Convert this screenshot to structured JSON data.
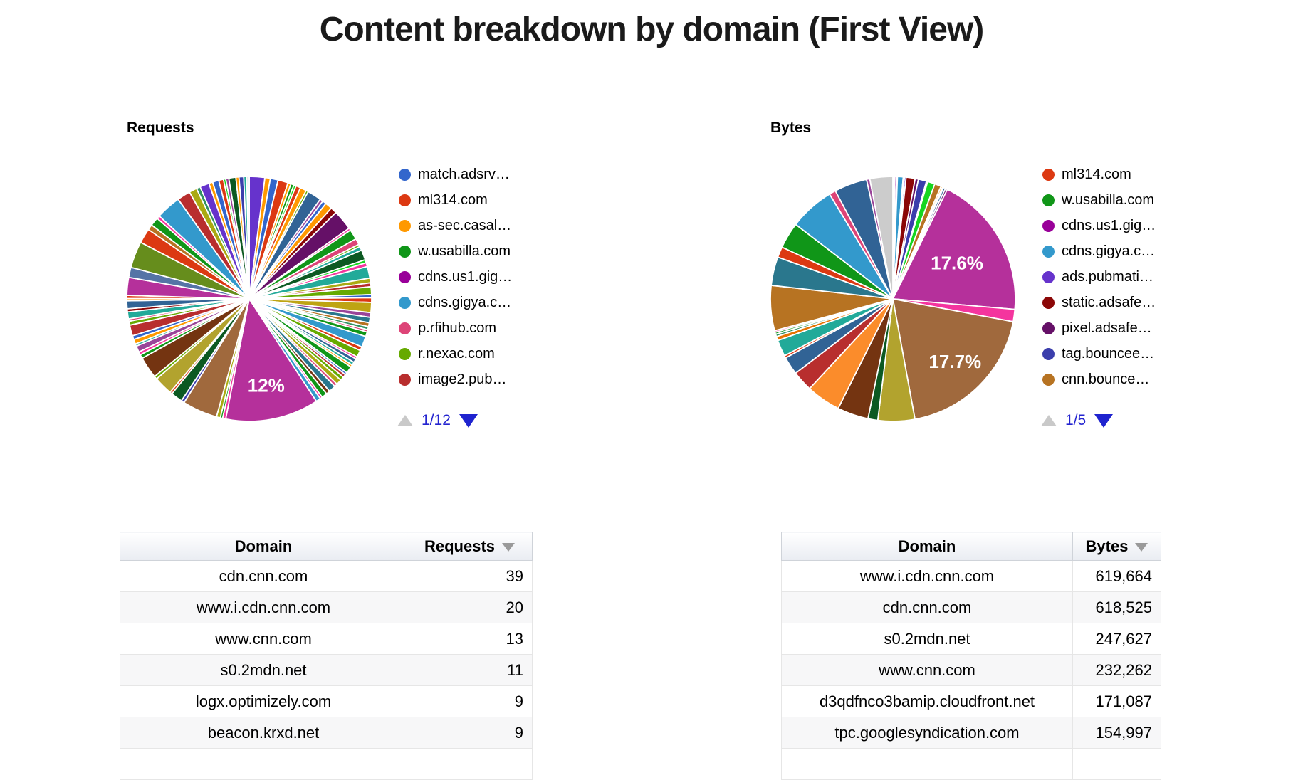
{
  "page": {
    "title": "Content breakdown by domain (First View)"
  },
  "chart_data": [
    {
      "type": "pie",
      "title": "Requests",
      "pager": "1/12",
      "legend_position": "right",
      "legend": [
        {
          "label": "match.adsrv…",
          "color": "#3366CC"
        },
        {
          "label": "ml314.com",
          "color": "#DC3912"
        },
        {
          "label": "as-sec.casal…",
          "color": "#FF9900"
        },
        {
          "label": "w.usabilla.com",
          "color": "#109618"
        },
        {
          "label": "cdns.us1.gig…",
          "color": "#990099"
        },
        {
          "label": "cdns.gigya.c…",
          "color": "#3399CC"
        },
        {
          "label": "p.rfihub.com",
          "color": "#DD4477"
        },
        {
          "label": "r.nexac.com",
          "color": "#66AA00"
        },
        {
          "label": "image2.pub…",
          "color": "#B82E2E"
        }
      ],
      "labeled_values": [
        {
          "label": "12%",
          "value": 12
        }
      ],
      "slices": [
        {
          "v": 2.0,
          "c": "#6633CC"
        },
        {
          "v": 0.7,
          "c": "#FF9900"
        },
        {
          "v": 1.0,
          "c": "#3366CC"
        },
        {
          "v": 1.3,
          "c": "#DC3912"
        },
        {
          "v": 0.4,
          "c": "#FF9900"
        },
        {
          "v": 0.4,
          "c": "#109618"
        },
        {
          "v": 0.3,
          "c": "#16D620"
        },
        {
          "v": 0.6,
          "c": "#DC3912"
        },
        {
          "v": 0.8,
          "c": "#FF9900"
        },
        {
          "v": 0.3,
          "c": "#66AA00"
        },
        {
          "v": 1.8,
          "c": "#316395"
        },
        {
          "v": 0.4,
          "c": "#994499"
        },
        {
          "v": 0.5,
          "c": "#3366CC"
        },
        {
          "v": 0.9,
          "c": "#FF9900"
        },
        {
          "v": 0.8,
          "c": "#8B0707"
        },
        {
          "v": 2.6,
          "c": "#651067"
        },
        {
          "v": 0.3,
          "c": "#F4359E"
        },
        {
          "v": 1.3,
          "c": "#109618"
        },
        {
          "v": 0.8,
          "c": "#DD4477"
        },
        {
          "v": 0.3,
          "c": "#66AA00"
        },
        {
          "v": 0.5,
          "c": "#22AA99"
        },
        {
          "v": 1.3,
          "c": "#0C5922"
        },
        {
          "v": 0.4,
          "c": "#16D620"
        },
        {
          "v": 0.5,
          "c": "#F4359E"
        },
        {
          "v": 1.5,
          "c": "#22AA99"
        },
        {
          "v": 0.6,
          "c": "#AAAA11"
        },
        {
          "v": 0.5,
          "c": "#B82E2E"
        },
        {
          "v": 1.0,
          "c": "#66AA00"
        },
        {
          "v": 0.4,
          "c": "#3366CC"
        },
        {
          "v": 0.6,
          "c": "#DC3912"
        },
        {
          "v": 1.3,
          "c": "#BEA413"
        },
        {
          "v": 0.6,
          "c": "#994499"
        },
        {
          "v": 0.7,
          "c": "#2A778D"
        },
        {
          "v": 0.5,
          "c": "#B77322"
        },
        {
          "v": 0.4,
          "c": "#329262"
        },
        {
          "v": 0.3,
          "c": "#DD4477"
        },
        {
          "v": 0.6,
          "c": "#109618"
        },
        {
          "v": 1.4,
          "c": "#3399CC"
        },
        {
          "v": 0.5,
          "c": "#DC3912"
        },
        {
          "v": 0.9,
          "c": "#66AA00"
        },
        {
          "v": 0.3,
          "c": "#F4359E"
        },
        {
          "v": 0.5,
          "c": "#316395"
        },
        {
          "v": 0.4,
          "c": "#22AA99"
        },
        {
          "v": 0.3,
          "c": "#FF9900"
        },
        {
          "v": 0.9,
          "c": "#109618"
        },
        {
          "v": 0.3,
          "c": "#3366CC"
        },
        {
          "v": 0.4,
          "c": "#B82E2E"
        },
        {
          "v": 0.5,
          "c": "#66AA00"
        },
        {
          "v": 0.7,
          "c": "#AAAA11"
        },
        {
          "v": 0.4,
          "c": "#DD4477"
        },
        {
          "v": 0.9,
          "c": "#2A778D"
        },
        {
          "v": 0.5,
          "c": "#743411"
        },
        {
          "v": 0.7,
          "c": "#109618"
        },
        {
          "v": 0.3,
          "c": "#F4359E"
        },
        {
          "v": 0.6,
          "c": "#3399CC"
        },
        {
          "v": 12.0,
          "c": "#B5309B",
          "t": "12%",
          "f": 0.72
        },
        {
          "v": 0.4,
          "c": "#F4359E"
        },
        {
          "v": 0.3,
          "c": "#109618"
        },
        {
          "v": 0.5,
          "c": "#AAAA11"
        },
        {
          "v": 4.5,
          "c": "#A0693D"
        },
        {
          "v": 0.4,
          "c": "#3B3EAC"
        },
        {
          "v": 1.5,
          "c": "#0C5922"
        },
        {
          "v": 0.3,
          "c": "#DC3912"
        },
        {
          "v": 2.4,
          "c": "#B2A32E"
        },
        {
          "v": 0.4,
          "c": "#66AA00"
        },
        {
          "v": 2.8,
          "c": "#743411"
        },
        {
          "v": 0.5,
          "c": "#109618"
        },
        {
          "v": 0.4,
          "c": "#F4359E"
        },
        {
          "v": 0.8,
          "c": "#994499"
        },
        {
          "v": 0.3,
          "c": "#22AA99"
        },
        {
          "v": 0.6,
          "c": "#FF9900"
        },
        {
          "v": 0.5,
          "c": "#3366CC"
        },
        {
          "v": 1.4,
          "c": "#B82E2E"
        },
        {
          "v": 0.5,
          "c": "#66AA00"
        },
        {
          "v": 0.3,
          "c": "#DD4477"
        },
        {
          "v": 0.9,
          "c": "#22AA99"
        },
        {
          "v": 0.4,
          "c": "#8B0707"
        },
        {
          "v": 1.0,
          "c": "#316395"
        },
        {
          "v": 0.3,
          "c": "#FF9900"
        },
        {
          "v": 0.4,
          "c": "#DC3912"
        },
        {
          "v": 2.3,
          "c": "#B5309B"
        },
        {
          "v": 1.3,
          "c": "#5574A6"
        },
        {
          "v": 3.4,
          "c": "#668D1C"
        },
        {
          "v": 1.9,
          "c": "#DC3912"
        },
        {
          "v": 0.7,
          "c": "#B77322"
        },
        {
          "v": 1.1,
          "c": "#109618"
        },
        {
          "v": 0.4,
          "c": "#F4359E"
        },
        {
          "v": 3.2,
          "c": "#3399CC"
        },
        {
          "v": 1.7,
          "c": "#B82E2E"
        },
        {
          "v": 1.0,
          "c": "#AAAA11"
        },
        {
          "v": 0.5,
          "c": "#329262"
        },
        {
          "v": 1.2,
          "c": "#6633CC"
        },
        {
          "v": 0.5,
          "c": "#FF9900"
        },
        {
          "v": 0.8,
          "c": "#3366CC"
        },
        {
          "v": 0.6,
          "c": "#DC3912"
        },
        {
          "v": 0.3,
          "c": "#16D620"
        },
        {
          "v": 0.4,
          "c": "#994499"
        },
        {
          "v": 0.9,
          "c": "#0C5922"
        },
        {
          "v": 0.4,
          "c": "#FF9900"
        },
        {
          "v": 0.6,
          "c": "#3B3EAC"
        },
        {
          "v": 0.4,
          "c": "#22AA99"
        },
        {
          "v": 0.3,
          "c": "#CCCCCC"
        }
      ]
    },
    {
      "type": "pie",
      "title": "Bytes",
      "pager": "1/5",
      "legend_position": "right",
      "legend": [
        {
          "label": "ml314.com",
          "color": "#DC3912"
        },
        {
          "label": "w.usabilla.com",
          "color": "#109618"
        },
        {
          "label": "cdns.us1.gig…",
          "color": "#990099"
        },
        {
          "label": "cdns.gigya.c…",
          "color": "#3399CC"
        },
        {
          "label": "ads.pubmati…",
          "color": "#6633CC"
        },
        {
          "label": "static.adsafe…",
          "color": "#8B0707"
        },
        {
          "label": "pixel.adsafe…",
          "color": "#651067"
        },
        {
          "label": "tag.bouncee…",
          "color": "#3B3EAC"
        },
        {
          "label": "cnn.bounce…",
          "color": "#B77322"
        }
      ],
      "labeled_values": [
        {
          "label": "17.6%",
          "value": 17.6
        },
        {
          "label": "17.7%",
          "value": 17.7
        }
      ],
      "slices": [
        {
          "v": 0.15,
          "c": "#DC3912"
        },
        {
          "v": 0.1,
          "c": "#16D620"
        },
        {
          "v": 0.2,
          "c": "#990099"
        },
        {
          "v": 0.1,
          "c": "#66AA00"
        },
        {
          "v": 0.7,
          "c": "#3399CC"
        },
        {
          "v": 0.15,
          "c": "#3366CC"
        },
        {
          "v": 0.2,
          "c": "#6633CC"
        },
        {
          "v": 1.1,
          "c": "#8B0707"
        },
        {
          "v": 0.4,
          "c": "#651067"
        },
        {
          "v": 1.0,
          "c": "#3B3EAC"
        },
        {
          "v": 0.15,
          "c": "#3366CC"
        },
        {
          "v": 0.9,
          "c": "#16D620"
        },
        {
          "v": 0.8,
          "c": "#B77322"
        },
        {
          "v": 0.2,
          "c": "#FF9900"
        },
        {
          "v": 0.15,
          "c": "#0099C6"
        },
        {
          "v": 0.25,
          "c": "#316395"
        },
        {
          "v": 0.25,
          "c": "#651067"
        },
        {
          "v": 17.6,
          "c": "#B5309B",
          "t": "17.6%",
          "f": 0.6
        },
        {
          "v": 1.5,
          "c": "#F4359E"
        },
        {
          "v": 17.7,
          "c": "#A0693D",
          "t": "17.7%",
          "f": 0.72
        },
        {
          "v": 4.5,
          "c": "#B2A32E"
        },
        {
          "v": 1.2,
          "c": "#0C5922"
        },
        {
          "v": 3.8,
          "c": "#743411"
        },
        {
          "v": 4.2,
          "c": "#FB8C2B"
        },
        {
          "v": 2.5,
          "c": "#B82E2E"
        },
        {
          "v": 2.2,
          "c": "#316395"
        },
        {
          "v": 0.3,
          "c": "#DC3912"
        },
        {
          "v": 2.0,
          "c": "#22AA99"
        },
        {
          "v": 0.5,
          "c": "#E67300"
        },
        {
          "v": 0.3,
          "c": "#329262"
        },
        {
          "v": 0.25,
          "c": "#109618"
        },
        {
          "v": 0.2,
          "c": "#F4359E"
        },
        {
          "v": 5.5,
          "c": "#B77322"
        },
        {
          "v": 3.5,
          "c": "#2A778D"
        },
        {
          "v": 1.3,
          "c": "#DC3912"
        },
        {
          "v": 3.2,
          "c": "#109618"
        },
        {
          "v": 5.5,
          "c": "#3399CC"
        },
        {
          "v": 0.8,
          "c": "#DD4477"
        },
        {
          "v": 4.0,
          "c": "#316395"
        },
        {
          "v": 0.4,
          "c": "#994499"
        },
        {
          "v": 2.8,
          "c": "#CCCCCC"
        }
      ]
    },
    {
      "type": "table",
      "headers": [
        "Domain",
        "Requests"
      ],
      "sorted_column": "Requests",
      "rows": [
        [
          "cdn.cnn.com",
          "39"
        ],
        [
          "www.i.cdn.cnn.com",
          "20"
        ],
        [
          "www.cnn.com",
          "13"
        ],
        [
          "s0.2mdn.net",
          "11"
        ],
        [
          "logx.optimizely.com",
          "9"
        ],
        [
          "beacon.krxd.net",
          "9"
        ]
      ]
    },
    {
      "type": "table",
      "headers": [
        "Domain",
        "Bytes"
      ],
      "sorted_column": "Bytes",
      "rows": [
        [
          "www.i.cdn.cnn.com",
          "619,664"
        ],
        [
          "cdn.cnn.com",
          "618,525"
        ],
        [
          "s0.2mdn.net",
          "247,627"
        ],
        [
          "www.cnn.com",
          "232,262"
        ],
        [
          "d3qdfnco3bamip.cloudfront.net",
          "171,087"
        ],
        [
          "tpc.googlesyndication.com",
          "154,997"
        ]
      ]
    }
  ]
}
